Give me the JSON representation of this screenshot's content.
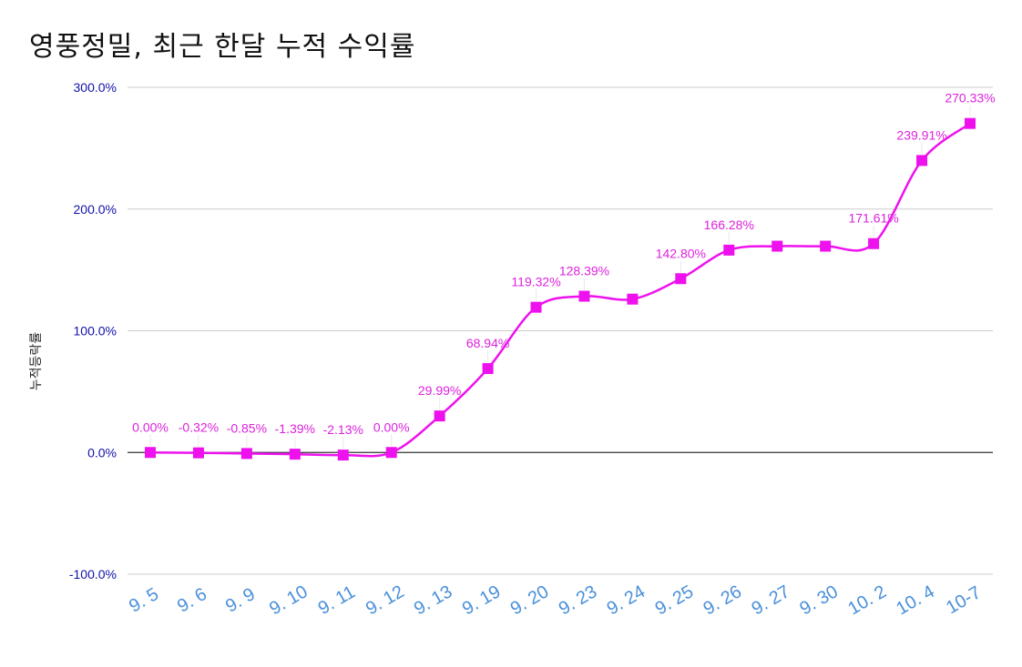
{
  "chart_data": {
    "type": "line",
    "title": "영풍정밀, 최근 한달 누적 수익률",
    "ylabel": "누적등락률",
    "xlabel": "",
    "ylim": [
      -100,
      300
    ],
    "yticks": [
      "300.0%",
      "200.0%",
      "100.0%",
      "0.0%",
      "-100.0%"
    ],
    "ytick_values": [
      300,
      200,
      100,
      0,
      -100
    ],
    "categories": [
      "9. 5",
      "9. 6",
      "9. 9",
      "9. 10",
      "9. 11",
      "9. 12",
      "9. 13",
      "9. 19",
      "9. 20",
      "9. 23",
      "9. 24",
      "9. 25",
      "9. 26",
      "9. 27",
      "9. 30",
      "10. 2",
      "10. 4",
      "10-7"
    ],
    "series": [
      {
        "values": [
          0.0,
          -0.32,
          -0.85,
          -1.39,
          -2.13,
          0.0,
          29.99,
          68.94,
          119.32,
          128.39,
          126.0,
          142.8,
          166.28,
          169.5,
          169.5,
          171.61,
          239.91,
          270.33
        ],
        "labels": [
          "0.00%",
          "-0.32%",
          "-0.85%",
          "-1.39%",
          "-2.13%",
          "0.00%",
          "29.99%",
          "68.94%",
          "119.32%",
          "128.39%",
          "",
          "142.80%",
          "166.28%",
          "",
          "",
          "171.61%",
          "239.91%",
          "270.33%"
        ]
      }
    ],
    "grid": true,
    "colors": {
      "line": "#ee11ee",
      "label": "#dd22dd",
      "ytick": "#1111aa",
      "xtick": "#4a90d9",
      "grid": "#cccccc",
      "zero": "#333333"
    }
  }
}
